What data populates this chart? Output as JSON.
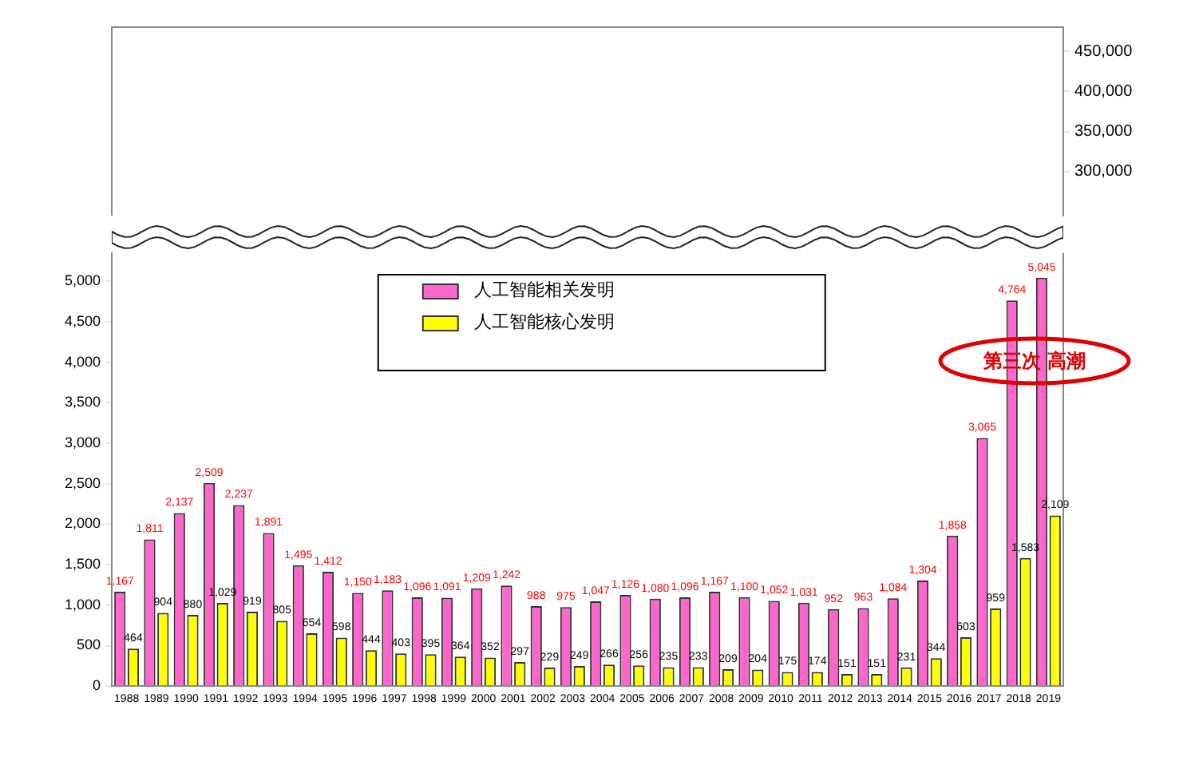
{
  "chart_data": [
    {
      "type": "bar",
      "categories": [
        "1988",
        "1989",
        "1990",
        "1991",
        "1992",
        "1993",
        "1994",
        "1995",
        "1996",
        "1997",
        "1998",
        "1999",
        "2000",
        "2001",
        "2002",
        "2003",
        "2004",
        "2005",
        "2006",
        "2007",
        "2008",
        "2009",
        "2010",
        "2011",
        "2012",
        "2013",
        "2014",
        "2015",
        "2016",
        "2017",
        "2018",
        "2019"
      ],
      "values": [
        null,
        null,
        null,
        null,
        null,
        null,
        null,
        null,
        null,
        null,
        null,
        null,
        null,
        null,
        null,
        null,
        null,
        null,
        null,
        null,
        null,
        null,
        null,
        null,
        null,
        null,
        null,
        null,
        null,
        null,
        null,
        null
      ],
      "ylim": [
        245000,
        480000
      ],
      "yticks": [
        {
          "value": 300000,
          "label": "300,000"
        },
        {
          "value": 350000,
          "label": "350,000"
        },
        {
          "value": 400000,
          "label": "400,000"
        },
        {
          "value": 450000,
          "label": "450,000"
        }
      ],
      "tick_labels": "y"
    },
    {
      "type": "bar",
      "categories": [
        "1988",
        "1989",
        "1990",
        "1991",
        "1992",
        "1993",
        "1994",
        "1995",
        "1996",
        "1997",
        "1998",
        "1999",
        "2000",
        "2001",
        "2002",
        "2003",
        "2004",
        "2005",
        "2006",
        "2007",
        "2008",
        "2009",
        "2010",
        "2011",
        "2012",
        "2013",
        "2014",
        "2015",
        "2016",
        "2017",
        "2018",
        "2019"
      ],
      "series": [
        {
          "name": "人工智能相关发明",
          "color": "#ff66cc",
          "values": [
            1167,
            1811,
            2137,
            2509,
            2237,
            1891,
            1495,
            1412,
            1150,
            1183,
            1096,
            1091,
            1209,
            1242,
            988,
            975,
            1047,
            1126,
            1080,
            1096,
            1167,
            1100,
            1052,
            1031,
            952,
            963,
            1084,
            1304,
            1858,
            3065,
            4764,
            5045
          ],
          "value_labels": [
            "1,167",
            "1,811",
            "2,137",
            "2,509",
            "2,237",
            "1,891",
            "1,495",
            "1,412",
            "1,150",
            "1,183",
            "1,096",
            "1,091",
            "1,209",
            "1,242",
            "988",
            "975",
            "1,047",
            "1,126",
            "1,080",
            "1,096",
            "1,167",
            "1,100",
            "1,052",
            "1,031",
            "952",
            "963",
            "1,084",
            "1,304",
            "1,858",
            "3,065",
            "4,764",
            "5,045"
          ]
        },
        {
          "name": "人工智能核心发明",
          "color": "#ffff00",
          "values": [
            464,
            904,
            880,
            1029,
            919,
            805,
            654,
            598,
            444,
            403,
            395,
            364,
            352,
            297,
            229,
            249,
            266,
            256,
            235,
            233,
            209,
            204,
            175,
            174,
            151,
            151,
            231,
            344,
            603,
            959,
            1583,
            2109
          ],
          "value_labels": [
            "464",
            "904",
            "880",
            "1,029",
            "919",
            "805",
            "654",
            "598",
            "444",
            "403",
            "395",
            "364",
            "352",
            "297",
            "229",
            "249",
            "266",
            "256",
            "235",
            "233",
            "209",
            "204",
            "175",
            "174",
            "151",
            "151",
            "231",
            "344",
            "603",
            "959",
            "1,583",
            "2,109"
          ]
        }
      ],
      "ylim": [
        0,
        5350
      ],
      "yticks": [
        0,
        500,
        {
          "value": 1000,
          "label": "1,000"
        },
        {
          "value": 1500,
          "label": "1,500"
        },
        {
          "value": 2000,
          "label": "2,000"
        },
        {
          "value": 2500,
          "label": "2,500"
        },
        {
          "value": 3000,
          "label": "3,000"
        },
        {
          "value": 3500,
          "label": "3,500"
        },
        {
          "value": 4000,
          "label": "4,000"
        },
        {
          "value": 4500,
          "label": "4,500"
        },
        {
          "value": 5000,
          "label": "5,000"
        }
      ],
      "legend": "top",
      "grid": false,
      "annotations": [
        "第三次 高潮"
      ]
    }
  ]
}
